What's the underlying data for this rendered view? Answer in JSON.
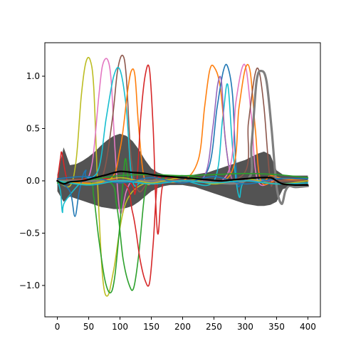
{
  "chart_data": {
    "type": "line",
    "title": "",
    "xlabel": "",
    "ylabel": "",
    "xlim": [
      -20,
      420
    ],
    "ylim": [
      -1.3,
      1.32
    ],
    "x_ticks": [
      0,
      50,
      100,
      150,
      200,
      250,
      300,
      350,
      400
    ],
    "y_ticks": [
      -1.0,
      -0.5,
      0.0,
      0.5,
      1.0
    ],
    "x_tick_labels": [
      "0",
      "50",
      "100",
      "150",
      "200",
      "250",
      "300",
      "350",
      "400"
    ],
    "y_tick_labels": [
      "−1.0",
      "−0.5",
      "0.0",
      "0.5",
      "1.0"
    ],
    "grid": false,
    "legend": "none",
    "envelope": {
      "color": "#404040",
      "x": [
        0,
        10,
        20,
        30,
        40,
        50,
        60,
        70,
        80,
        90,
        100,
        110,
        120,
        130,
        140,
        150,
        160,
        170,
        180,
        190,
        200,
        210,
        220,
        230,
        240,
        250,
        260,
        270,
        280,
        290,
        300,
        310,
        320,
        330,
        340,
        350,
        360,
        370,
        380,
        390,
        400
      ],
      "upper": [
        0.06,
        0.32,
        0.15,
        0.16,
        0.19,
        0.23,
        0.28,
        0.34,
        0.39,
        0.43,
        0.45,
        0.43,
        0.38,
        0.3,
        0.2,
        0.12,
        0.08,
        0.06,
        0.05,
        0.05,
        0.05,
        0.05,
        0.06,
        0.07,
        0.08,
        0.1,
        0.12,
        0.14,
        0.16,
        0.18,
        0.2,
        0.23,
        0.26,
        0.28,
        0.25,
        0.1,
        0.06,
        0.05,
        0.05,
        0.05,
        0.05
      ],
      "lower": [
        -0.1,
        -0.2,
        -0.15,
        -0.17,
        -0.19,
        -0.21,
        -0.23,
        -0.25,
        -0.26,
        -0.27,
        -0.27,
        -0.26,
        -0.24,
        -0.2,
        -0.15,
        -0.1,
        -0.07,
        -0.05,
        -0.04,
        -0.04,
        -0.04,
        -0.05,
        -0.06,
        -0.08,
        -0.1,
        -0.12,
        -0.14,
        -0.16,
        -0.18,
        -0.2,
        -0.22,
        -0.23,
        -0.24,
        -0.24,
        -0.23,
        -0.2,
        -0.08,
        -0.06,
        -0.05,
        -0.05,
        -0.05
      ]
    },
    "series": [
      {
        "color": "#bcbd22",
        "width": 1.6,
        "x": [
          0,
          20,
          30,
          38,
          45,
          52,
          58,
          64,
          72,
          80,
          90,
          110,
          150,
          200,
          250,
          300,
          350,
          400
        ],
        "y": [
          0.0,
          -0.05,
          0.2,
          0.8,
          1.12,
          1.16,
          0.9,
          0.0,
          -0.9,
          -1.1,
          -0.85,
          -0.2,
          0.0,
          0.0,
          0.0,
          0.0,
          0.0,
          0.0
        ]
      },
      {
        "color": "#e377c2",
        "width": 1.6,
        "x": [
          0,
          40,
          55,
          66,
          72,
          80,
          86,
          92,
          100,
          110,
          120,
          140,
          200,
          250,
          300,
          350,
          400
        ],
        "y": [
          0.0,
          0.0,
          0.15,
          0.8,
          1.1,
          1.16,
          0.95,
          0.3,
          -0.3,
          -0.1,
          0.0,
          0.0,
          0.0,
          0.0,
          0.0,
          0.0,
          0.0
        ]
      },
      {
        "color": "#8c564b",
        "width": 1.6,
        "x": [
          0,
          60,
          75,
          88,
          96,
          104,
          110,
          118,
          130,
          150,
          200,
          250,
          300,
          350,
          400
        ],
        "y": [
          0.0,
          0.0,
          0.1,
          0.6,
          1.05,
          1.2,
          1.0,
          0.2,
          -0.1,
          0.0,
          0.0,
          0.0,
          0.0,
          0.0,
          0.0
        ]
      },
      {
        "color": "#17becf",
        "width": 1.6,
        "x": [
          0,
          5,
          8,
          12,
          40,
          65,
          78,
          90,
          100,
          110,
          120,
          140,
          200,
          250,
          264,
          272,
          280,
          290,
          300,
          350,
          400
        ],
        "y": [
          0.0,
          -0.1,
          -0.3,
          -0.2,
          0.0,
          0.1,
          0.6,
          1.0,
          1.06,
          0.7,
          0.0,
          0.0,
          0.0,
          0.0,
          0.6,
          0.92,
          0.3,
          -0.15,
          0.0,
          0.0,
          0.0
        ]
      },
      {
        "color": "#ff7f0e",
        "width": 1.6,
        "x": [
          0,
          80,
          100,
          112,
          118,
          124,
          130,
          140,
          160,
          200,
          225,
          235,
          243,
          250,
          260,
          270,
          280,
          300,
          330,
          340,
          360,
          400
        ],
        "y": [
          0.0,
          0.0,
          0.3,
          0.85,
          1.05,
          1.0,
          0.5,
          0.0,
          0.0,
          0.0,
          0.2,
          0.7,
          1.05,
          1.09,
          0.9,
          0.3,
          0.0,
          0.0,
          0.0,
          0.05,
          0.02,
          0.0
        ]
      },
      {
        "color": "#2ca02c",
        "width": 1.6,
        "x": [
          0,
          50,
          58,
          66,
          76,
          85,
          92,
          100,
          108,
          114,
          125,
          150,
          200,
          250,
          300,
          350,
          400
        ],
        "y": [
          0.0,
          0.0,
          -0.15,
          -0.55,
          -0.95,
          -1.07,
          -0.9,
          -0.4,
          0.2,
          0.0,
          0.0,
          0.0,
          0.05,
          0.0,
          0.0,
          0.0,
          0.0
        ]
      },
      {
        "color": "#2ca02c",
        "width": 1.6,
        "x": [
          0,
          80,
          95,
          105,
          115,
          122,
          130,
          140,
          150,
          160,
          200,
          250,
          300,
          350,
          400
        ],
        "y": [
          0.0,
          0.0,
          -0.25,
          -0.75,
          -1.0,
          -1.02,
          -0.7,
          -0.1,
          0.0,
          0.0,
          0.0,
          0.0,
          0.0,
          0.0,
          0.0
        ]
      },
      {
        "color": "#d62728",
        "width": 1.6,
        "x": [
          0,
          5,
          7,
          12,
          16,
          20,
          110,
          125,
          133,
          140,
          147,
          153,
          160,
          170,
          200,
          250,
          300,
          350,
          400
        ],
        "y": [
          0.0,
          0.22,
          0.27,
          0.1,
          0.0,
          0.0,
          0.0,
          -0.1,
          0.6,
          1.0,
          1.07,
          0.5,
          -0.5,
          0.0,
          0.0,
          0.0,
          0.0,
          0.0,
          0.0
        ]
      },
      {
        "color": "#d62728",
        "width": 1.6,
        "x": [
          0,
          100,
          120,
          132,
          140,
          147,
          153,
          160,
          170,
          200,
          250,
          300,
          350,
          400
        ],
        "y": [
          0.0,
          0.0,
          -0.3,
          -0.75,
          -0.95,
          -0.98,
          -0.6,
          0.0,
          0.0,
          0.0,
          0.0,
          0.0,
          0.0,
          0.0
        ]
      },
      {
        "color": "#1f77b4",
        "width": 1.6,
        "x": [
          0,
          20,
          28,
          35,
          45,
          60,
          200,
          240,
          255,
          265,
          272,
          280,
          287,
          300,
          350,
          400
        ],
        "y": [
          0.0,
          -0.1,
          -0.34,
          -0.1,
          0.1,
          0.0,
          0.0,
          0.1,
          0.7,
          1.05,
          1.09,
          0.8,
          0.0,
          0.0,
          0.0,
          0.0
        ]
      },
      {
        "color": "#9467bd",
        "width": 1.6,
        "x": [
          0,
          200,
          235,
          248,
          256,
          262,
          268,
          280,
          300,
          350,
          400
        ],
        "y": [
          0.0,
          0.0,
          0.05,
          0.5,
          0.92,
          0.95,
          0.4,
          0.0,
          0.0,
          0.0,
          0.0
        ]
      },
      {
        "color": "#e377c2",
        "width": 1.6,
        "x": [
          0,
          200,
          270,
          285,
          295,
          302,
          310,
          320,
          350,
          400
        ],
        "y": [
          0.0,
          0.0,
          0.05,
          0.75,
          1.08,
          1.05,
          0.6,
          0.0,
          0.0,
          0.0
        ]
      },
      {
        "color": "#ff7f0e",
        "width": 1.6,
        "x": [
          0,
          200,
          275,
          290,
          300,
          308,
          316,
          325,
          350,
          400
        ],
        "y": [
          0.0,
          0.0,
          0.05,
          0.7,
          1.07,
          1.04,
          0.5,
          0.0,
          0.0,
          0.0
        ]
      },
      {
        "color": "#8c564b",
        "width": 1.6,
        "x": [
          0,
          200,
          295,
          305,
          315,
          322,
          330,
          340,
          350,
          400
        ],
        "y": [
          0.0,
          0.0,
          0.05,
          0.55,
          1.0,
          1.05,
          0.7,
          0.0,
          0.0,
          0.0
        ]
      },
      {
        "color": "#7f7f7f",
        "width": 3.2,
        "x": [
          0,
          200,
          300,
          310,
          318,
          326,
          334,
          342,
          350,
          358,
          364,
          370,
          380,
          400
        ],
        "y": [
          0.0,
          0.0,
          0.0,
          0.35,
          0.95,
          1.05,
          0.95,
          0.5,
          -0.05,
          -0.22,
          -0.1,
          -0.05,
          -0.06,
          -0.05
        ]
      },
      {
        "color": "#bcbd22",
        "width": 1.6,
        "x": [
          0,
          50,
          100,
          150,
          200,
          250,
          300,
          350,
          400
        ],
        "y": [
          0.0,
          -0.03,
          0.03,
          -0.02,
          0.03,
          -0.03,
          0.02,
          -0.03,
          0.0
        ]
      },
      {
        "color": "#1f77b4",
        "width": 1.6,
        "x": [
          0,
          50,
          100,
          150,
          200,
          250,
          300,
          350,
          400
        ],
        "y": [
          0.02,
          0.04,
          -0.02,
          0.03,
          -0.02,
          0.04,
          -0.03,
          0.02,
          0.02
        ]
      },
      {
        "color": "#2ca02c",
        "width": 1.6,
        "x": [
          0,
          50,
          100,
          150,
          200,
          250,
          300,
          350,
          400
        ],
        "y": [
          -0.02,
          0.01,
          0.05,
          0.06,
          0.05,
          0.06,
          0.07,
          0.06,
          0.03
        ]
      },
      {
        "color": "#17becf",
        "width": 1.6,
        "x": [
          0,
          50,
          100,
          150,
          200,
          250,
          300,
          350,
          400
        ],
        "y": [
          0.0,
          -0.04,
          0.0,
          -0.03,
          0.0,
          -0.02,
          0.0,
          -0.03,
          -0.02
        ]
      },
      {
        "color": "#000000",
        "width": 2.2,
        "x": [
          0,
          10,
          20,
          40,
          60,
          80,
          100,
          120,
          140,
          160,
          180,
          200,
          220,
          240,
          260,
          280,
          300,
          320,
          340,
          350,
          360,
          380,
          400
        ],
        "y": [
          0.0,
          -0.03,
          -0.01,
          0.0,
          0.03,
          0.06,
          0.09,
          0.08,
          0.07,
          0.05,
          0.04,
          0.03,
          0.02,
          0.01,
          0.0,
          0.01,
          0.02,
          0.03,
          0.03,
          0.0,
          -0.03,
          -0.04,
          -0.04
        ]
      }
    ]
  }
}
